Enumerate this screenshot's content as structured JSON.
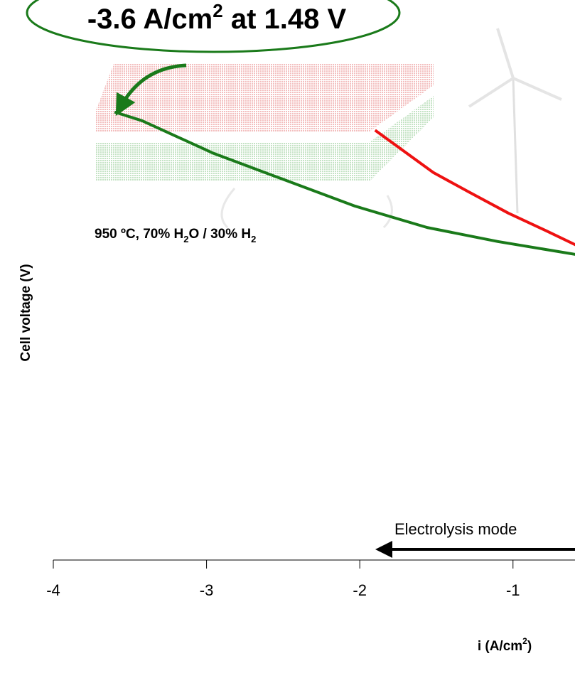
{
  "chart_data": {
    "type": "line",
    "callout": [
      "-3.6 A/cm",
      "2",
      " at 1.48 V"
    ],
    "condition": [
      "950 ºC, 70% H",
      "2",
      "O / 30% H",
      "2"
    ],
    "mode_label": "Electrolysis mode",
    "xlabel": [
      "i (A/cm",
      "2",
      ")"
    ],
    "ylabel": "Cell voltage (V)",
    "xlim": [
      -4,
      -0.6
    ],
    "xticks": [
      -4,
      -3,
      -2,
      -1
    ],
    "ylim": [
      0.2,
      1.8
    ],
    "series": [
      {
        "color": "#1a7a1a",
        "x": [
          -3.6,
          -3.42,
          -2.96,
          -2.49,
          -2.03,
          -1.56,
          -1.1,
          -0.59
        ],
        "values": [
          1.48,
          1.455,
          1.363,
          1.286,
          1.211,
          1.15,
          1.11,
          1.073
        ]
      },
      {
        "color": "#ee1111",
        "x": [
          -1.9,
          -1.52,
          -1.29,
          -1.03,
          -0.78,
          -0.59
        ],
        "values": [
          1.428,
          1.307,
          1.252,
          1.191,
          1.14,
          1.1
        ]
      }
    ]
  }
}
